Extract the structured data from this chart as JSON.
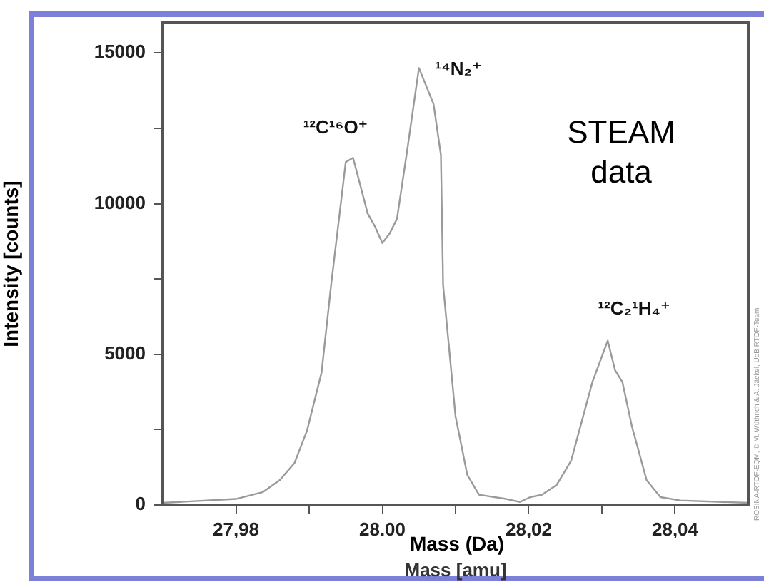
{
  "chart_data": {
    "type": "line",
    "xlabel": "Mass [amu]",
    "ylabel": "Intensity [counts]",
    "color": "#9a9a9a",
    "marker": "none",
    "grid": false,
    "legend": false,
    "xlim": [
      27.97,
      28.05
    ],
    "xticks": [
      {
        "value": 27.98,
        "label": "27,98"
      },
      {
        "value": 27.99,
        "label": null
      },
      {
        "value": 28.0,
        "label": "28.00"
      },
      {
        "value": 28.01,
        "label": null
      },
      {
        "value": 28.02,
        "label": "28,02"
      },
      {
        "value": 28.03,
        "label": null
      },
      {
        "value": 28.04,
        "label": "28,04"
      }
    ],
    "ylim": [
      0,
      16000
    ],
    "yticks": [
      0,
      {
        "value": 2500,
        "label": null
      },
      5000,
      {
        "value": 7500,
        "label": null
      },
      10000,
      {
        "value": 12500,
        "label": null
      },
      15000
    ],
    "x": [
      27.97,
      27.98,
      27.9837,
      27.986,
      27.988,
      27.9897,
      27.9917,
      27.993,
      27.995,
      27.996,
      27.998,
      27.999,
      28.0,
      28.001,
      28.002,
      28.0033,
      28.005,
      28.007,
      28.008,
      28.0083,
      28.01,
      28.0116,
      28.0132,
      28.0169,
      28.0188,
      28.0202,
      28.0218,
      28.0238,
      28.0258,
      28.0287,
      28.0308,
      28.0318,
      28.0328,
      28.0341,
      28.0361,
      28.038,
      28.0407,
      28.05
    ],
    "values": [
      70,
      200,
      430,
      830,
      1390,
      2460,
      4400,
      7300,
      11380,
      11520,
      9670,
      9240,
      8690,
      9010,
      9500,
      11610,
      14500,
      13300,
      11610,
      7300,
      2940,
      1000,
      340,
      200,
      100,
      260,
      340,
      660,
      1470,
      4080,
      5450,
      4470,
      4080,
      2610,
      830,
      260,
      150,
      70
    ],
    "annotations": [
      "¹²C¹⁶O⁺",
      "¹⁴N₂⁺",
      "¹²C₂¹H₄⁺",
      "STEAM data",
      "Mass (Da)",
      "ROSINA-RTOF-EQM, © M. Wüthrich & A. Jäckel, UoB RTOF-Team"
    ]
  }
}
